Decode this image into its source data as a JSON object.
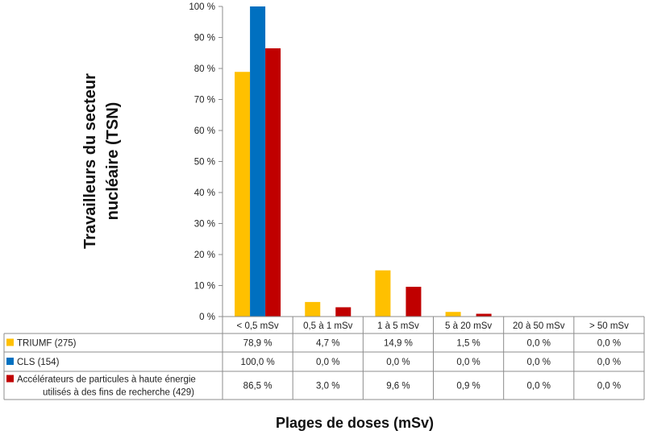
{
  "chart_data": {
    "type": "bar",
    "ylabel_lines": [
      "Travailleurs du secteur",
      "nucléaire (TSN)"
    ],
    "xlabel": "Plages de doses (mSv)",
    "categories": [
      "< 0,5 mSv",
      "0,5 à 1 mSv",
      "1 à 5 mSv",
      "5 à 20 mSv",
      "20 à 50 mSv",
      "> 50 mSv"
    ],
    "ylim": [
      0,
      100
    ],
    "yticks": [
      "0 %",
      "10 %",
      "20 %",
      "30 %",
      "40 %",
      "50 %",
      "60 %",
      "70 %",
      "80 %",
      "90 %",
      "100 %"
    ],
    "grid": false,
    "series": [
      {
        "name_lines": [
          "TRIUMF (275)"
        ],
        "color": "#ffc000",
        "values": [
          78.9,
          4.7,
          14.9,
          1.5,
          0.0,
          0.0
        ],
        "labels": [
          "78,9 %",
          "4,7 %",
          "14,9 %",
          "1,5 %",
          "0,0 %",
          "0,0 %"
        ]
      },
      {
        "name_lines": [
          "CLS (154)"
        ],
        "color": "#0070c0",
        "values": [
          100.0,
          0.0,
          0.0,
          0.0,
          0.0,
          0.0
        ],
        "labels": [
          "100,0 %",
          "0,0 %",
          "0,0 %",
          "0,0 %",
          "0,0 %",
          "0,0 %"
        ]
      },
      {
        "name_lines": [
          "Accélérateurs de particules à haute énergie",
          "utilisés à des fins de recherche (429)"
        ],
        "color": "#c00000",
        "values": [
          86.5,
          3.0,
          9.6,
          0.9,
          0.0,
          0.0
        ],
        "labels": [
          "86,5 %",
          "3,0 %",
          "9,6 %",
          "0,9 %",
          "0,0 %",
          "0,0 %"
        ]
      }
    ]
  }
}
